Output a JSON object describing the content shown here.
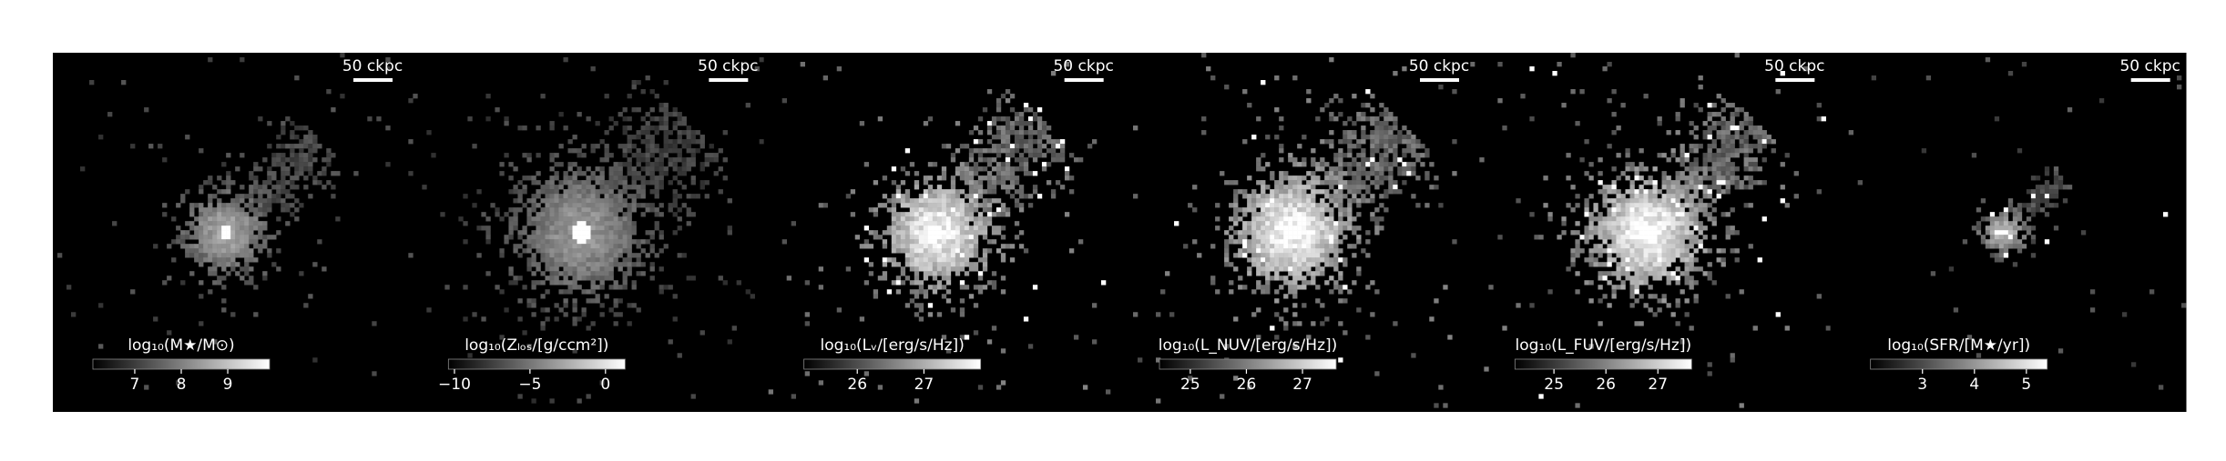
{
  "chart_data": [
    {
      "type": "image",
      "scalebar": "50 ckpc",
      "colorbar_label": "log₁₀(M★/M⊙)",
      "clim": [
        6.1,
        9.9
      ],
      "cticks": [
        7,
        8,
        9
      ]
    },
    {
      "type": "image",
      "scalebar": "50 ckpc",
      "colorbar_label": "log₁₀(Zₗₒₛ/[g/ccm²])",
      "clim": [
        -10.4,
        1.3
      ],
      "cticks": [
        {
          "value": -10,
          "label": "−10"
        },
        {
          "value": -5,
          "label": "−5"
        },
        0
      ]
    },
    {
      "type": "image",
      "scalebar": "50 ckpc",
      "colorbar_label": "log₁₀(Lᵥ/[erg/s/Hz])",
      "clim": [
        25.2,
        27.85
      ],
      "cticks": [
        26,
        27
      ]
    },
    {
      "type": "image",
      "scalebar": "50 ckpc",
      "colorbar_label": "log₁₀(L_NUV/[erg/s/Hz])",
      "clim": [
        24.45,
        27.6
      ],
      "cticks": [
        25,
        26,
        27
      ]
    },
    {
      "type": "image",
      "scalebar": "50 ckpc",
      "colorbar_label": "log₁₀(L_FUV/[erg/s/Hz])",
      "clim": [
        24.25,
        27.65
      ],
      "cticks": [
        25,
        26,
        27
      ]
    },
    {
      "type": "image",
      "scalebar": "50 ckpc",
      "colorbar_label": "log₁₀(SFR/[M★/yr])",
      "clim": [
        2.0,
        5.4
      ],
      "cticks": [
        3,
        4,
        5
      ]
    }
  ]
}
